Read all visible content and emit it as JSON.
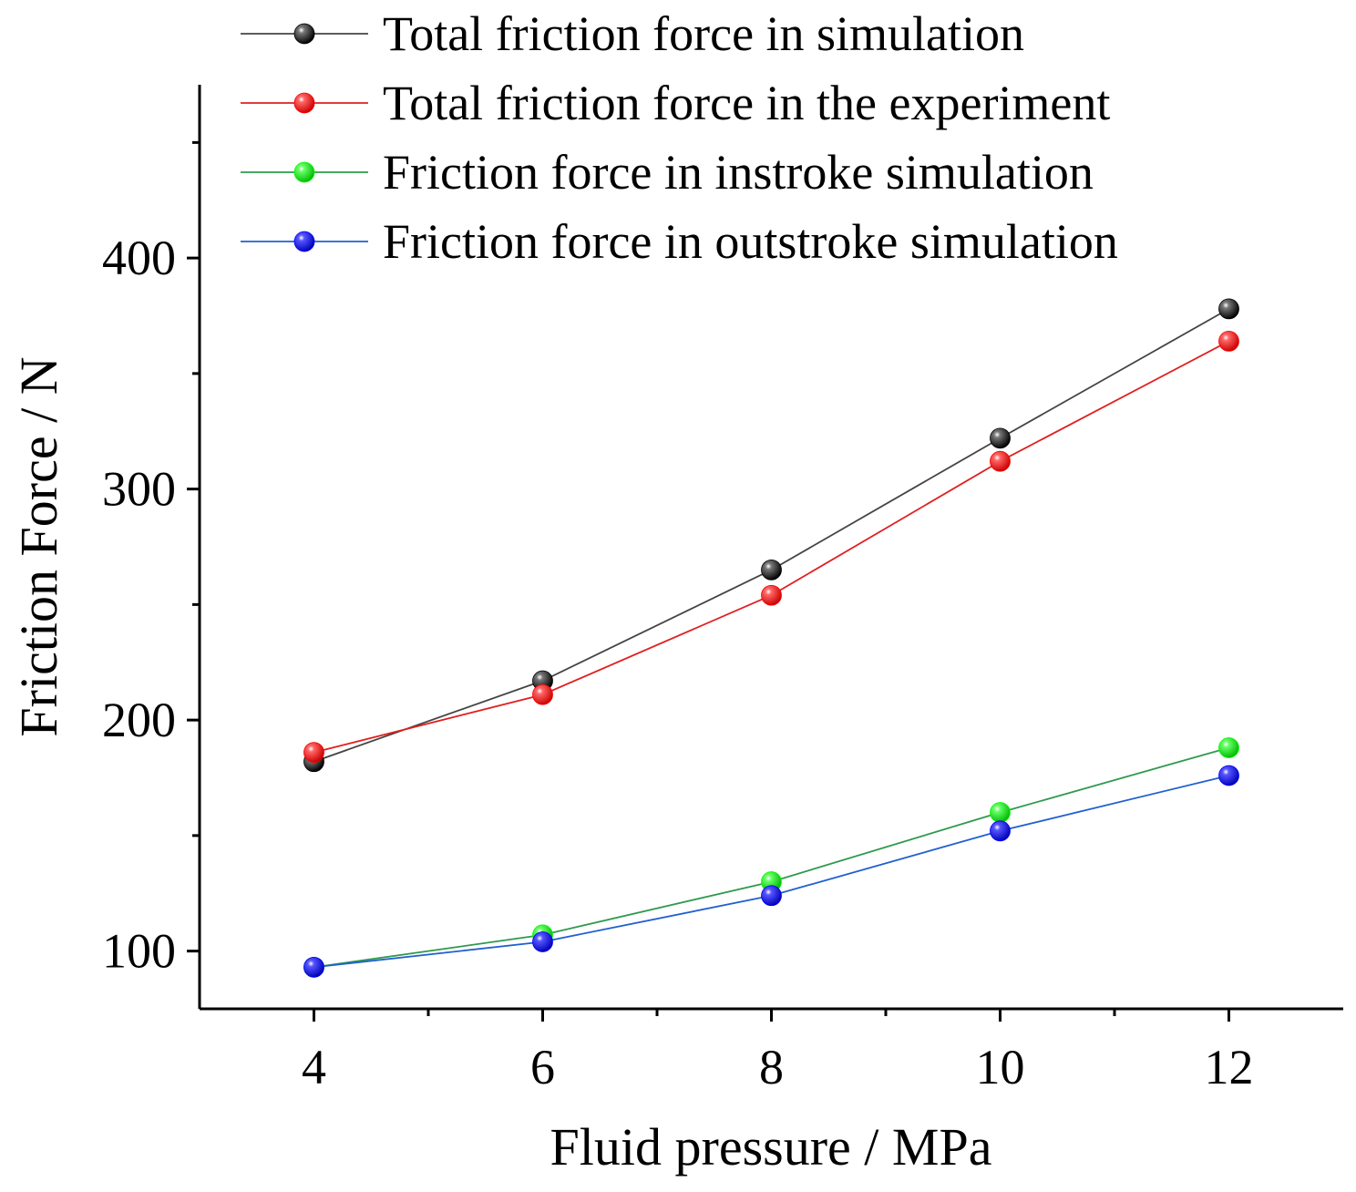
{
  "chart_data": {
    "type": "line",
    "title": "",
    "xlabel": "Fluid pressure / MPa",
    "ylabel": "Friction Force / N",
    "x": [
      4,
      6,
      8,
      10,
      12
    ],
    "xlim": [
      3,
      13
    ],
    "ylim": [
      75,
      475
    ],
    "x_ticks": [
      4,
      6,
      8,
      10,
      12
    ],
    "x_minor_ticks": [
      5,
      7,
      9,
      11
    ],
    "y_ticks": [
      100,
      200,
      300,
      400
    ],
    "y_minor_ticks": [
      150,
      250,
      350,
      450
    ],
    "grid": false,
    "legend_position": "top",
    "series": [
      {
        "name": "Total friction force in simulation",
        "color": "#000000",
        "line_color": "#444444",
        "values": [
          182,
          217,
          265,
          322,
          378
        ]
      },
      {
        "name": "Total friction force in the experiment",
        "color": "#ff0000",
        "line_color": "#e02020",
        "values": [
          186,
          211,
          254,
          312,
          364
        ]
      },
      {
        "name": "Friction force in instroke simulation",
        "color": "#00ff00",
        "line_color": "#2e9a4e",
        "values": [
          93,
          107,
          130,
          160,
          188
        ]
      },
      {
        "name": "Friction force in outstroke simulation",
        "color": "#0000ff",
        "line_color": "#2060d0",
        "values": [
          93,
          104,
          124,
          152,
          176
        ]
      }
    ]
  }
}
